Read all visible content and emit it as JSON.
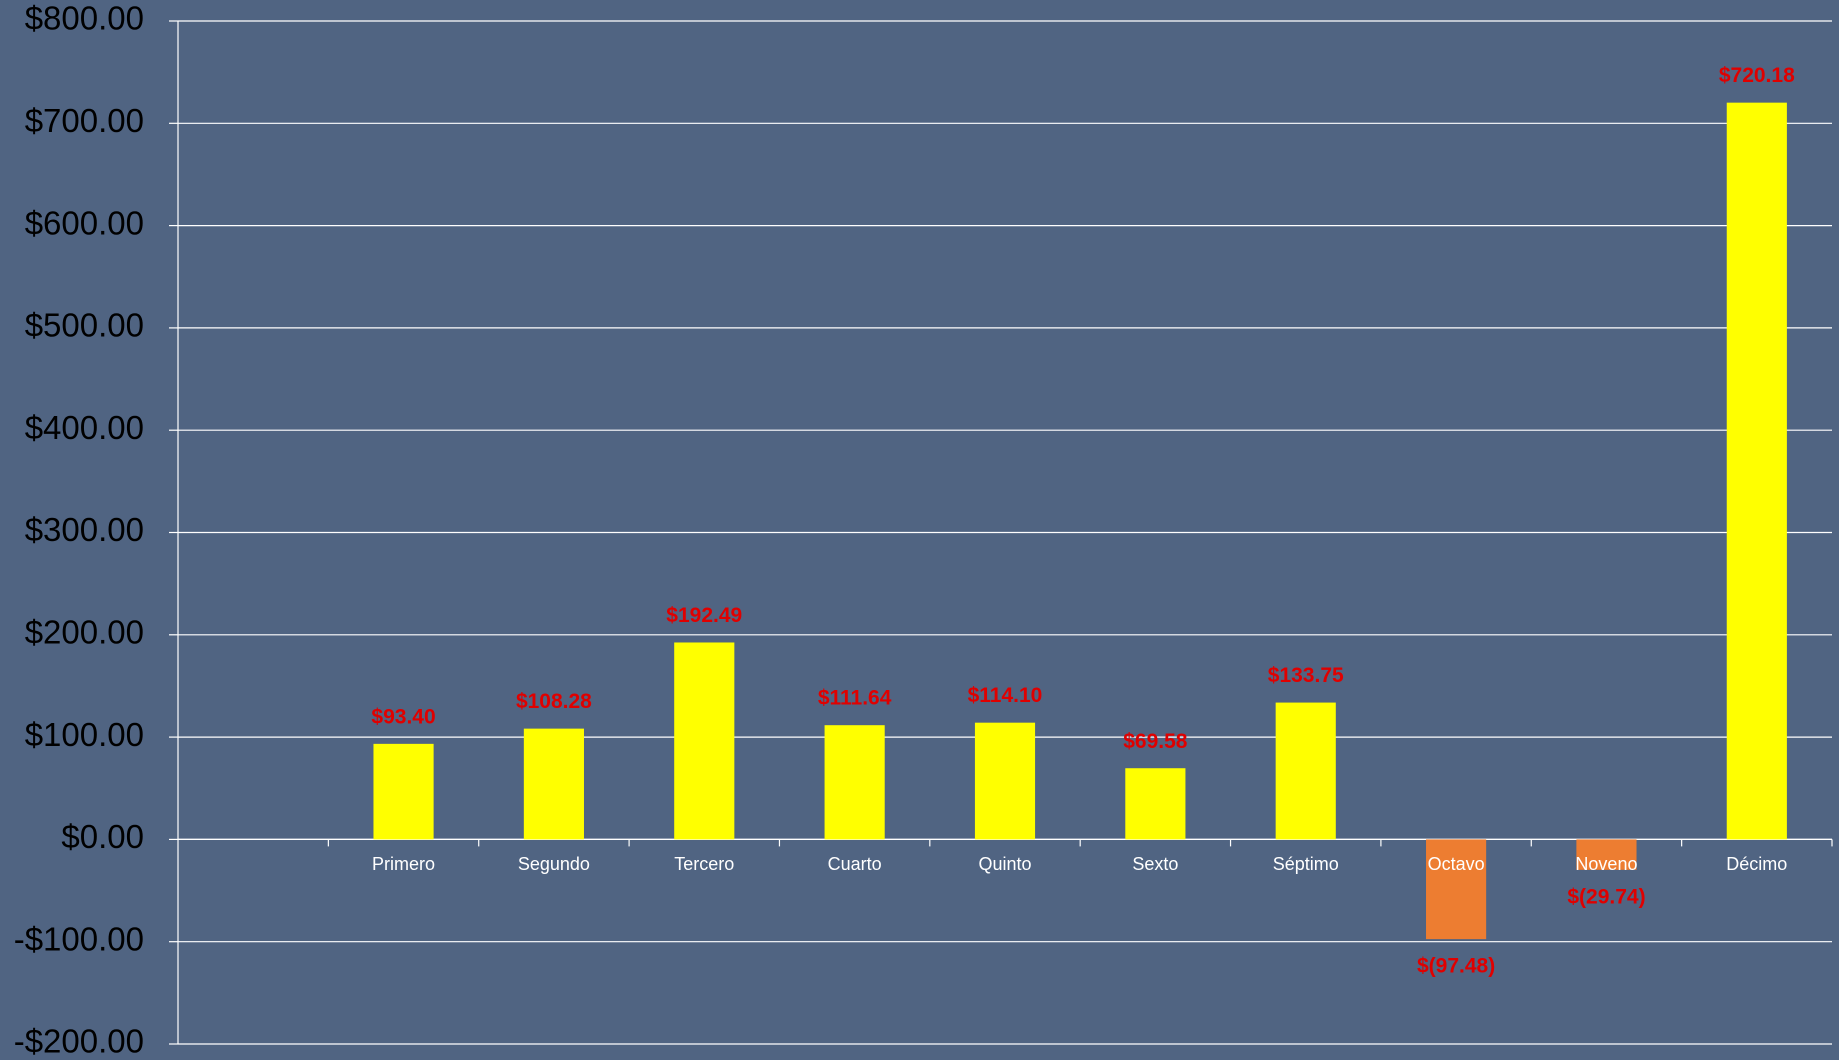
{
  "chart_data": {
    "type": "bar",
    "categories": [
      null,
      "Primero",
      "Segundo",
      "Tercero",
      "Cuarto",
      "Quinto",
      "Sexto",
      "Séptimo",
      "Octavo",
      "Noveno",
      "Décimo"
    ],
    "values": [
      null,
      93.4,
      108.28,
      192.49,
      111.64,
      114.1,
      69.58,
      133.75,
      -97.48,
      -29.74,
      720.18
    ],
    "value_labels": [
      null,
      "$93.40",
      "$108.28",
      "$192.49",
      "$111.64",
      "$114.10",
      "$69.58",
      "$133.75",
      "$(97.48)",
      "$(29.74)",
      "$720.18"
    ],
    "colors": {
      "positive": "#ffff00",
      "negative": "#ed7d31"
    },
    "ylim": [
      -200,
      800
    ],
    "yticks": [
      {
        "value": -200,
        "label": "-$200.00"
      },
      {
        "value": -100,
        "label": "-$100.00"
      },
      {
        "value": 0,
        "label": "$0.00"
      },
      {
        "value": 100,
        "label": "$100.00"
      },
      {
        "value": 200,
        "label": "$200.00"
      },
      {
        "value": 300,
        "label": "$300.00"
      },
      {
        "value": 400,
        "label": "$400.00"
      },
      {
        "value": 500,
        "label": "$500.00"
      },
      {
        "value": 600,
        "label": "$600.00"
      },
      {
        "value": 700,
        "label": "$700.00"
      },
      {
        "value": 800,
        "label": "$800.00"
      }
    ],
    "grid": true
  }
}
